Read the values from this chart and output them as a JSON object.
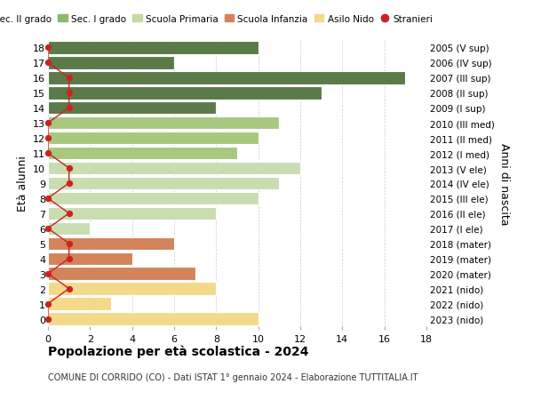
{
  "ages": [
    0,
    1,
    2,
    3,
    4,
    5,
    6,
    7,
    8,
    9,
    10,
    11,
    12,
    13,
    14,
    15,
    16,
    17,
    18
  ],
  "years": [
    "2023 (nido)",
    "2022 (nido)",
    "2021 (nido)",
    "2020 (mater)",
    "2019 (mater)",
    "2018 (mater)",
    "2017 (I ele)",
    "2016 (II ele)",
    "2015 (III ele)",
    "2014 (IV ele)",
    "2013 (V ele)",
    "2012 (I med)",
    "2011 (II med)",
    "2010 (III med)",
    "2009 (I sup)",
    "2008 (II sup)",
    "2007 (III sup)",
    "2006 (IV sup)",
    "2005 (V sup)"
  ],
  "values": [
    10,
    3,
    8,
    7,
    4,
    6,
    2,
    8,
    10,
    11,
    12,
    9,
    10,
    11,
    8,
    13,
    17,
    6,
    10
  ],
  "bar_colors": [
    "#f5d98b",
    "#f5d98b",
    "#f5d98b",
    "#d4845a",
    "#d4845a",
    "#d4845a",
    "#c9ddb0",
    "#c9ddb0",
    "#c9ddb0",
    "#c9ddb0",
    "#c9ddb0",
    "#a8c880",
    "#a8c880",
    "#a8c880",
    "#5a7a4a",
    "#5a7a4a",
    "#5a7a4a",
    "#5a7a4a",
    "#5a7a4a"
  ],
  "stranieri_x": [
    0,
    0,
    1,
    0,
    1,
    1,
    0,
    1,
    0,
    1,
    1,
    0,
    0,
    0,
    1,
    1,
    1,
    0,
    0
  ],
  "title": "Popolazione per età scolastica - 2024",
  "subtitle": "COMUNE DI CORRIDO (CO) - Dati ISTAT 1° gennaio 2024 - Elaborazione TUTTITALIA.IT",
  "ylabel_left": "Età alunni",
  "ylabel_right": "Anni di nascita",
  "xlim": [
    0,
    18
  ],
  "legend_labels": [
    "Sec. II grado",
    "Sec. I grado",
    "Scuola Primaria",
    "Scuola Infanzia",
    "Asilo Nido",
    "Stranieri"
  ],
  "legend_colors": [
    "#4a7040",
    "#8ab870",
    "#c2dba0",
    "#d4845a",
    "#f5d98b",
    "#cc2222"
  ],
  "bg_color": "#ffffff",
  "grid_color": "#cccccc"
}
